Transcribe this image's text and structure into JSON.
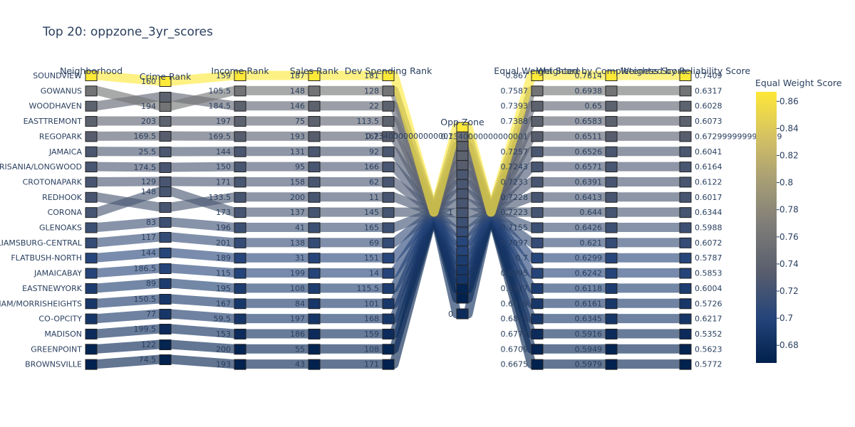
{
  "chart_data": {
    "type": "parallel_categories",
    "title": "Top 20: oppzone_3yr_scores",
    "color_by": "Equal Weight Score",
    "colorscale": [
      "#00204d",
      "#26457a",
      "#575d6d",
      "#7c7b78",
      "#a69d75",
      "#d3c164",
      "#fee838"
    ],
    "colorbar": {
      "title": "Equal Weight Score",
      "range": [
        0.667,
        0.867
      ],
      "ticks": [
        "0.68",
        "0.7",
        "0.72",
        "0.74",
        "0.76",
        "0.78",
        "0.8",
        "0.82",
        "0.84",
        "0.86"
      ]
    },
    "dimensions": [
      "Neighborhood",
      "Crime Rank",
      "Income Rank",
      "Sales Rank",
      "Dev Spending Rank",
      "Opp Zone",
      "Equal Weight Score",
      "Weighted by Completeness Score",
      "Weighted by Reliability Score"
    ],
    "opp_zone_labels": [
      "0.7340000000000001",
      "1",
      "0"
    ],
    "rows": [
      {
        "neighborhood": "SOUNDVIEW",
        "crime": "160",
        "income": "159",
        "sales": "187",
        "dev": "181",
        "opp": "1",
        "equal": "0.867",
        "completeness": "0.7814",
        "reliability": "0.7409"
      },
      {
        "neighborhood": "GOWANUS",
        "crime": "194",
        "income": "105.5",
        "sales": "148",
        "dev": "128",
        "opp": "1",
        "equal": "0.7587",
        "completeness": "0.6938",
        "reliability": "0.6317"
      },
      {
        "neighborhood": "WOODHAVEN",
        "crime": "",
        "income": "184.5",
        "sales": "146",
        "dev": "22",
        "opp": "1",
        "equal": "0.7393",
        "completeness": "0.65",
        "reliability": "0.6028"
      },
      {
        "neighborhood": "EASTTREMONT",
        "crime": "203",
        "income": "197",
        "sales": "75",
        "dev": "113.5",
        "opp": "1",
        "equal": "0.7388",
        "completeness": "0.6583",
        "reliability": "0.6073"
      },
      {
        "neighborhood": "REGOPARK",
        "crime": "169.5",
        "income": "169.5",
        "sales": "193",
        "dev": "162",
        "opp": "1",
        "equal": "0.7340000000000001",
        "completeness": "0.6511",
        "reliability": "0.6729999999999999"
      },
      {
        "neighborhood": "JAMAICA",
        "crime": "25.5",
        "income": "144",
        "sales": "131",
        "dev": "92",
        "opp": "1",
        "equal": "0.7257",
        "completeness": "0.6526",
        "reliability": "0.6041"
      },
      {
        "neighborhood": "MORRISANIA/LONGWOOD",
        "crime": "174.5",
        "income": "150",
        "sales": "95",
        "dev": "166",
        "opp": "1",
        "equal": "0.7243",
        "completeness": "0.6571",
        "reliability": "0.6164"
      },
      {
        "neighborhood": "CROTONAPARK",
        "crime": "129",
        "income": "171",
        "sales": "158",
        "dev": "62",
        "opp": "1",
        "equal": "0.7233",
        "completeness": "0.6391",
        "reliability": "0.6122"
      },
      {
        "neighborhood": "REDHOOK",
        "crime": "",
        "income": "133.5",
        "sales": "200",
        "dev": "11",
        "opp": "1",
        "equal": "0.7228",
        "completeness": "0.6413",
        "reliability": "0.6017"
      },
      {
        "neighborhood": "CORONA",
        "crime": "148",
        "income": "173",
        "sales": "137",
        "dev": "145",
        "opp": "1",
        "equal": "0.7223",
        "completeness": "0.644",
        "reliability": "0.6344"
      },
      {
        "neighborhood": "GLENOAKS",
        "crime": "83",
        "income": "196",
        "sales": "41",
        "dev": "165",
        "opp": "1",
        "equal": "0.7155",
        "completeness": "0.6426",
        "reliability": "0.5988"
      },
      {
        "neighborhood": "WILLIAMSBURG-CENTRAL",
        "crime": "117",
        "income": "201",
        "sales": "138",
        "dev": "69",
        "opp": "1",
        "equal": "0.7097",
        "completeness": "0.621",
        "reliability": "0.6072"
      },
      {
        "neighborhood": "FLATBUSH-NORTH",
        "crime": "144",
        "income": "189",
        "sales": "31",
        "dev": "151",
        "opp": "1",
        "equal": "0.7",
        "completeness": "0.6299",
        "reliability": "0.5787"
      },
      {
        "neighborhood": "JAMAICABAY",
        "crime": "186.5",
        "income": "115",
        "sales": "199",
        "dev": "14",
        "opp": "1",
        "equal": "0.6995",
        "completeness": "0.6242",
        "reliability": "0.5853"
      },
      {
        "neighborhood": "EASTNEWYORK",
        "crime": "89",
        "income": "195",
        "sales": "108",
        "dev": "115.5",
        "opp": "1",
        "equal": "0.6927",
        "completeness": "0.6118",
        "reliability": "0.6004"
      },
      {
        "neighborhood": "UNIVERSITYHEIGHTS/FORDHAM/MORRISHEIGHTS",
        "crime": "150.5",
        "income": "167",
        "sales": "84",
        "dev": "101",
        "opp": "1",
        "equal": "0.6879",
        "completeness": "0.6161",
        "reliability": "0.5726"
      },
      {
        "neighborhood": "CO-OPCITY",
        "crime": "77",
        "income": "59.5",
        "sales": "197",
        "dev": "168",
        "opp": "1",
        "equal": "0.6869",
        "completeness": "0.6345",
        "reliability": "0.6217"
      },
      {
        "neighborhood": "MADISON",
        "crime": "199.5",
        "income": "153",
        "sales": "186",
        "dev": "159",
        "opp": "0",
        "equal": "0.6772",
        "completeness": "0.5916",
        "reliability": "0.5352"
      },
      {
        "neighborhood": "GREENPOINT",
        "crime": "122",
        "income": "200",
        "sales": "55",
        "dev": "108",
        "opp": "1",
        "equal": "0.6709",
        "completeness": "0.5949",
        "reliability": "0.5623"
      },
      {
        "neighborhood": "BROWNSVILLE",
        "crime": "74.5",
        "income": "193",
        "sales": "43",
        "dev": "171",
        "opp": "1",
        "equal": "0.6675",
        "completeness": "0.5979",
        "reliability": "0.5772"
      }
    ]
  }
}
